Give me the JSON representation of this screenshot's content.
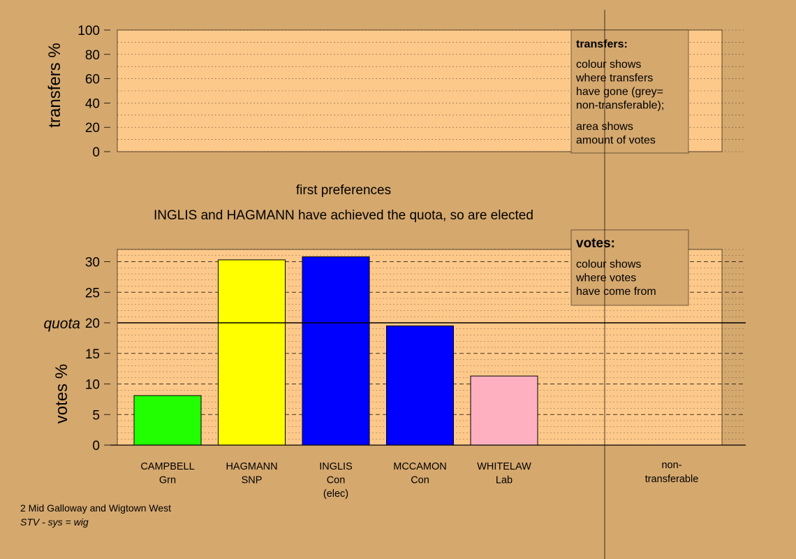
{
  "colors": {
    "page_bg": "#d5a86e",
    "plot_bg": "#fdc98a",
    "campbell": "#22ff00",
    "hagmann": "#ffff00",
    "inglis": "#0000ff",
    "mccamon": "#0000ff",
    "whitelaw": "#ffb0c0"
  },
  "stage": {
    "title": "first preferences",
    "message": "INGLIS and HAGMANN have achieved the quota, so are elected"
  },
  "transfers_legend": {
    "heading": "transfers:",
    "lines1": [
      "colour shows",
      "where transfers",
      "have gone (grey=",
      "non-transferable);"
    ],
    "lines2": [
      "area shows",
      "amount of votes"
    ]
  },
  "votes_legend": {
    "heading": "votes:",
    "lines": [
      "colour shows",
      "where votes",
      "have come from"
    ]
  },
  "footer": {
    "line1": "2 Mid Galloway and Wigtown West",
    "line2": "STV - sys = wig"
  },
  "chart_data": [
    {
      "type": "bar",
      "ylabel": "transfers %",
      "ylim": [
        0,
        100
      ],
      "yticks": [
        "0",
        "20",
        "40",
        "60",
        "80",
        "100"
      ],
      "values": []
    },
    {
      "type": "bar",
      "ylabel": "votes %",
      "ylim": [
        0,
        32
      ],
      "yticks": [
        "0",
        "5",
        "10",
        "15",
        "20",
        "25",
        "30"
      ],
      "quota_label": "quota",
      "quota": 20,
      "categories": [
        {
          "name": "CAMPBELL",
          "party": "Grn",
          "note": "",
          "value": 8.1,
          "color": "#22ff00"
        },
        {
          "name": "HAGMANN",
          "party": "SNP",
          "note": "",
          "value": 30.3,
          "color": "#ffff00"
        },
        {
          "name": "INGLIS",
          "party": "Con",
          "note": "(elec)",
          "value": 30.8,
          "color": "#0000ff"
        },
        {
          "name": "MCCAMON",
          "party": "Con",
          "note": "",
          "value": 19.5,
          "color": "#0000ff"
        },
        {
          "name": "WHITELAW",
          "party": "Lab",
          "note": "",
          "value": 11.3,
          "color": "#ffb0c0"
        }
      ],
      "nontransferable_label": [
        "non-",
        "transferable"
      ]
    }
  ]
}
